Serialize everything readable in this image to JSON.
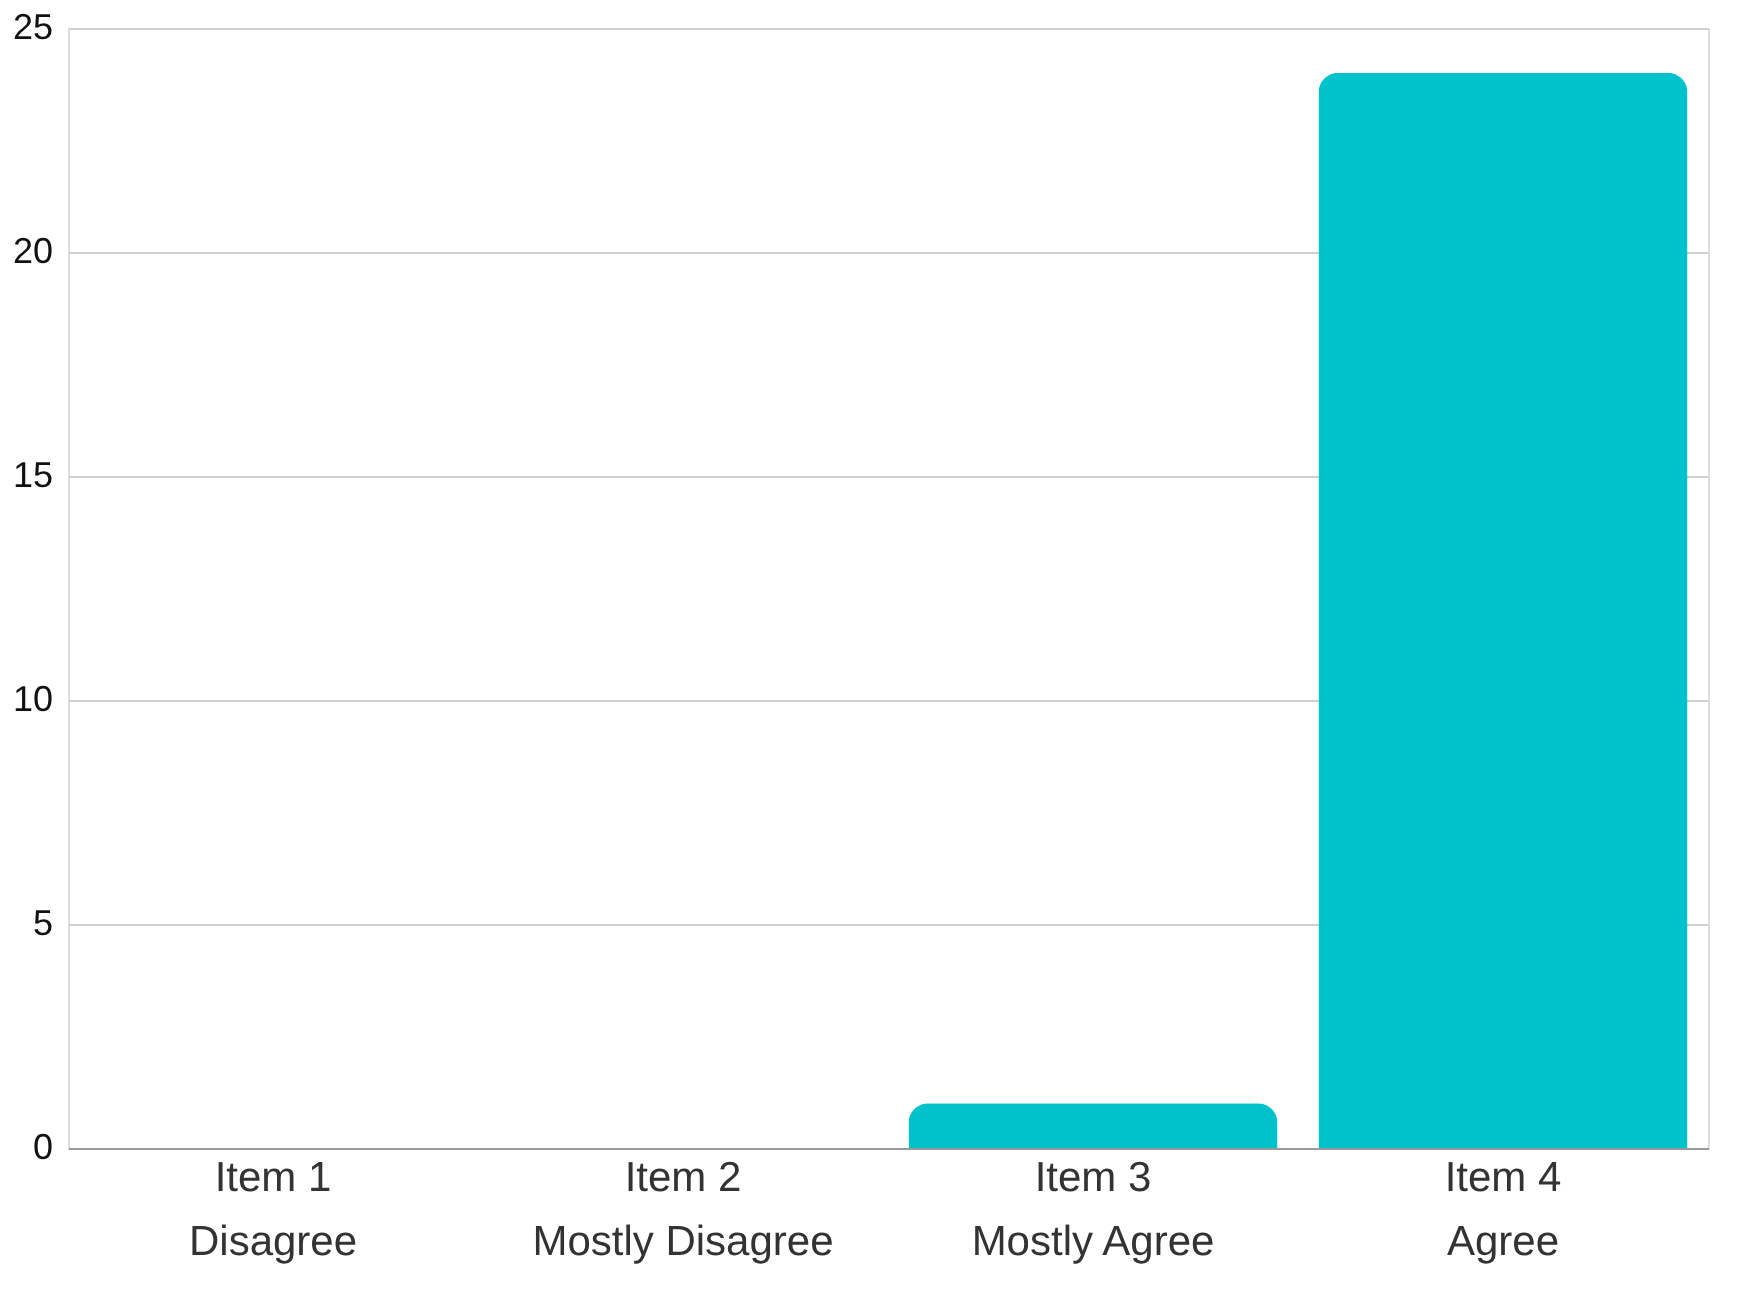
{
  "chart_data": {
    "type": "bar",
    "categories": [
      "Item 1\nDisagree",
      "Item 2\nMostly Disagree",
      "Item 3\nMostly Agree",
      "Item 4\nAgree"
    ],
    "values": [
      0,
      0,
      1,
      24
    ],
    "color": "#00c2cb",
    "ylim": [
      0,
      25
    ],
    "yticks": [
      0,
      5,
      10,
      15,
      20,
      25
    ],
    "grid": "y"
  }
}
